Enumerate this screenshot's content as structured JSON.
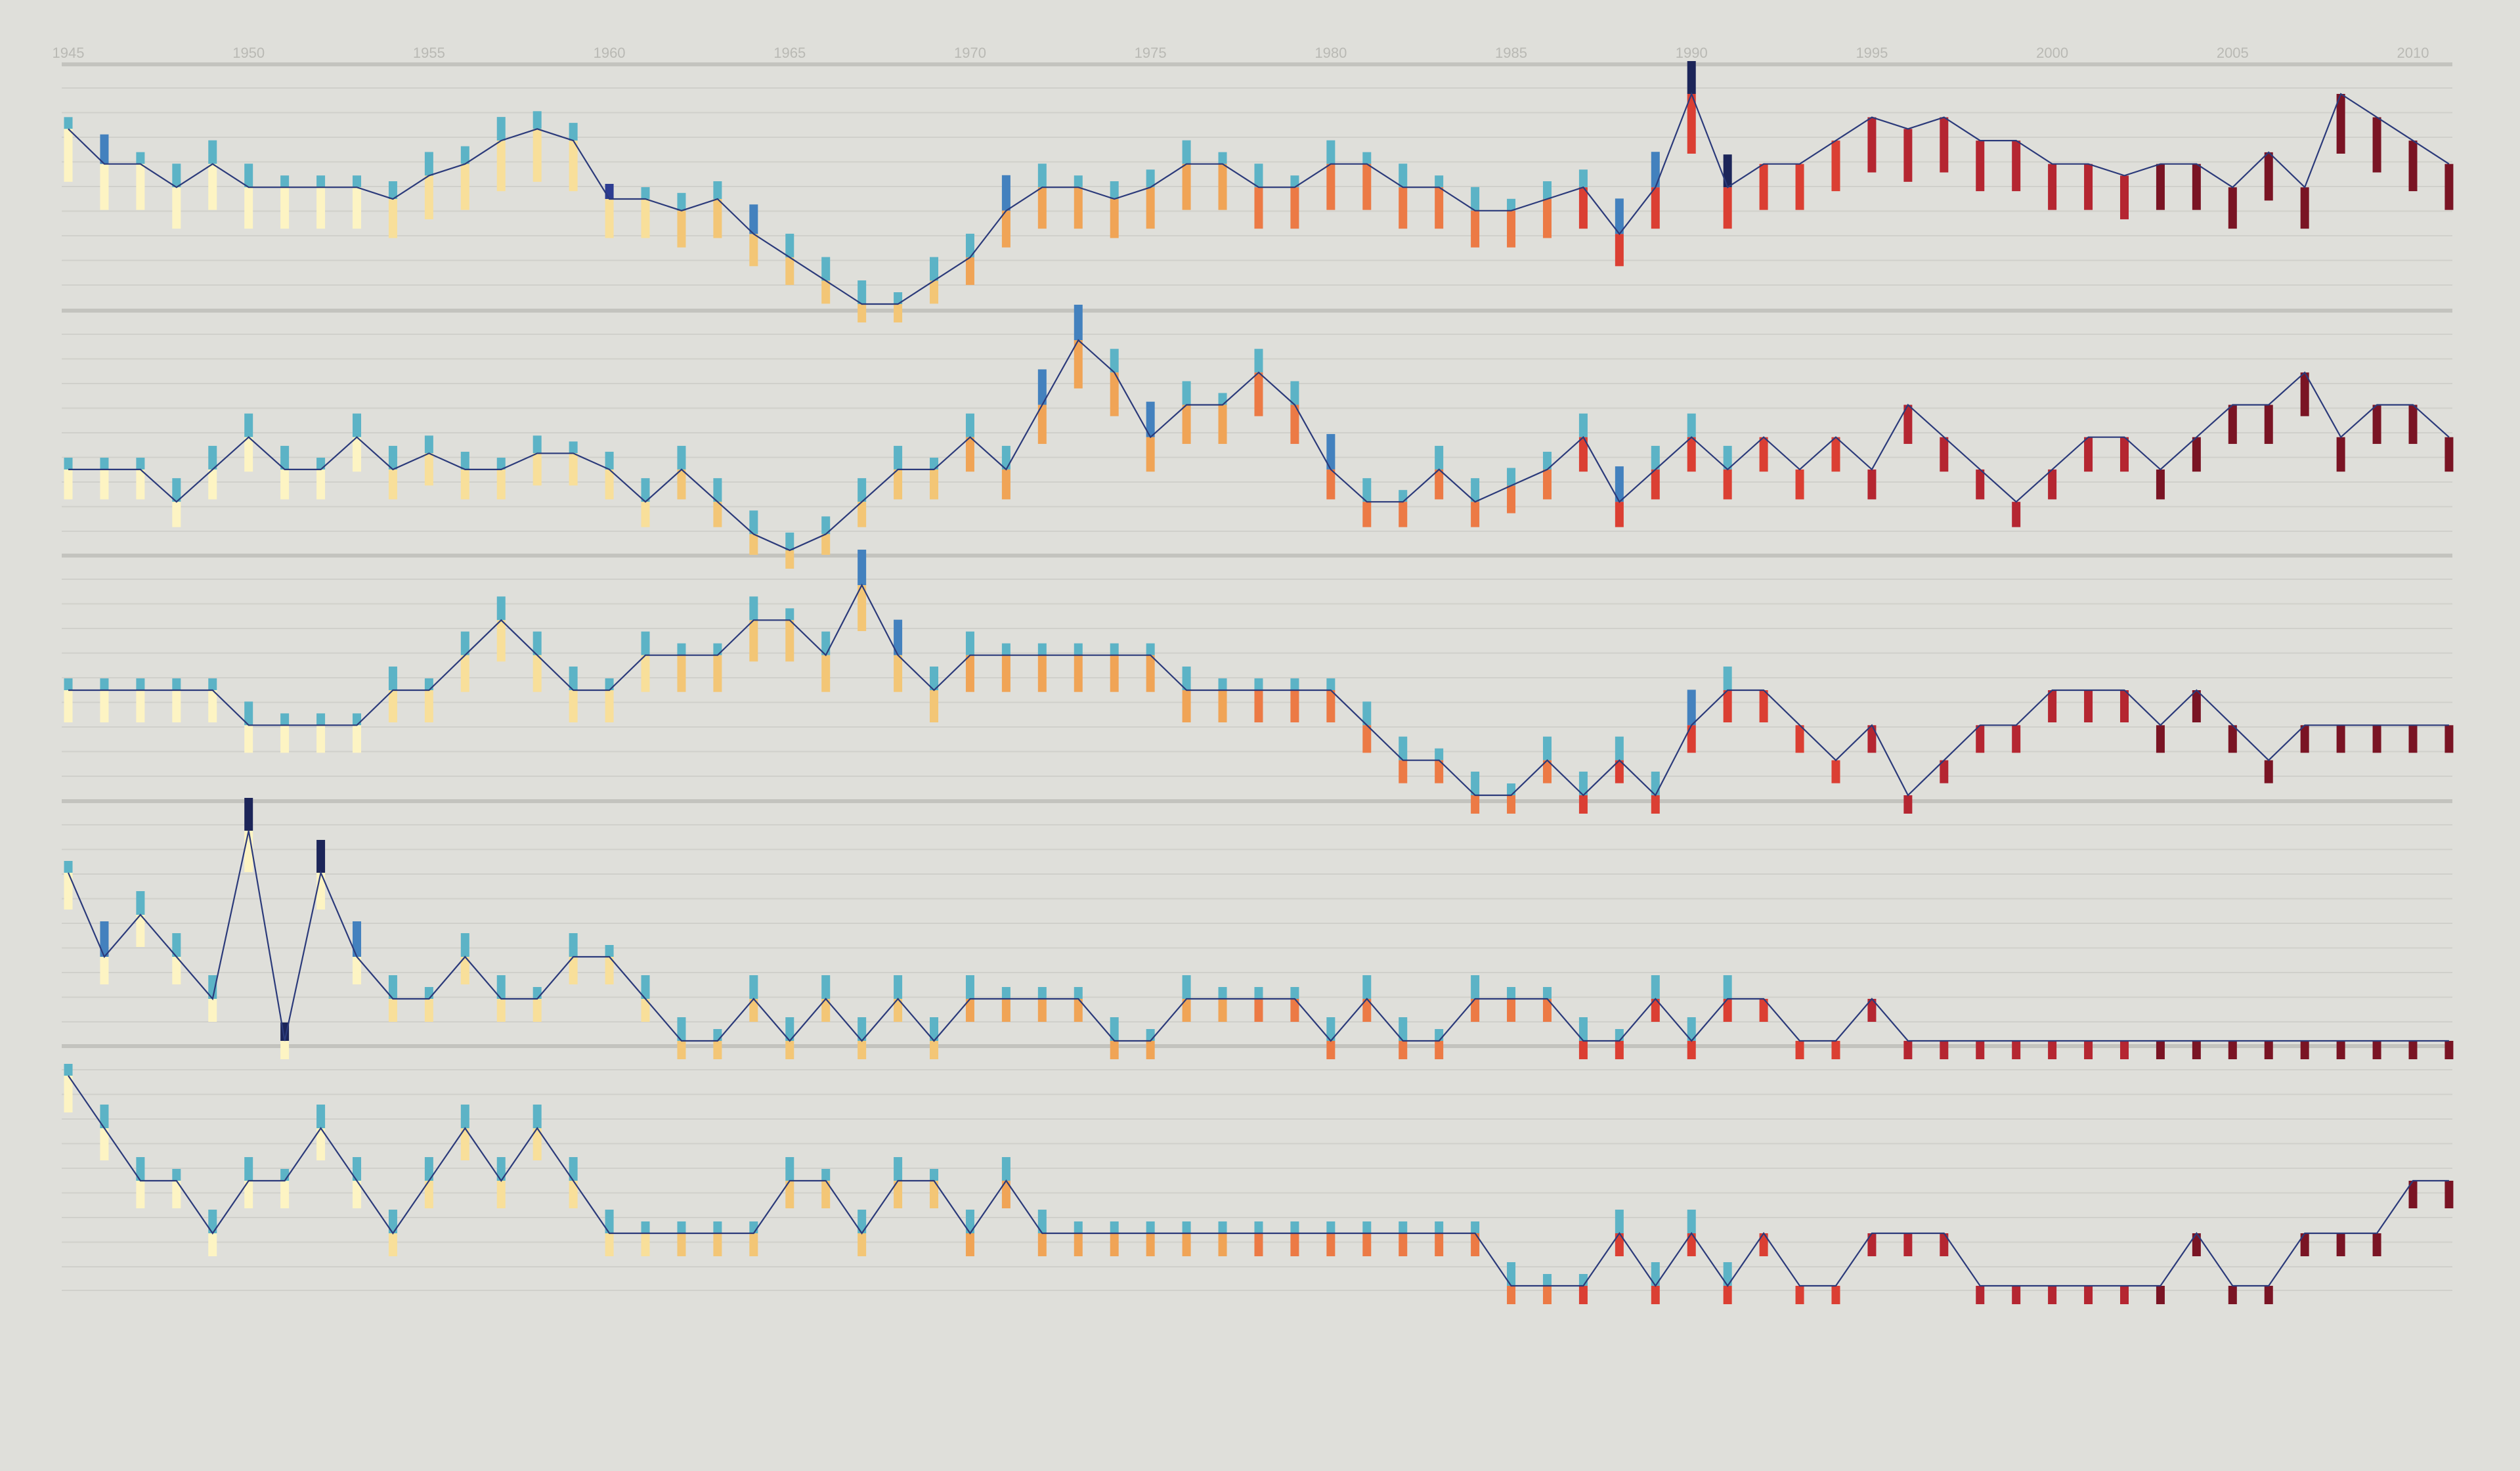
{
  "chart_data": {
    "type": "bar",
    "title": "",
    "xlabel": "",
    "ylabel": "",
    "x_ticks": [
      "1945",
      "1950",
      "1955",
      "1960",
      "1965",
      "1970",
      "1975",
      "1980",
      "1985",
      "1990",
      "1995",
      "2000",
      "2005",
      "2010"
    ],
    "x_range": [
      1945,
      2011
    ],
    "grid": true,
    "colors": {
      "background": "#dfdfda",
      "grid": "#d0d0cb",
      "panel_separator": "#c3c3be",
      "tick_label": "#b9b9b4",
      "line_dark": "#2b3a7a",
      "line_light": "#5aaec4",
      "above_teal": "#5cb3c6",
      "above_blue": "#4381be",
      "above_royal": "#2c3c92",
      "above_navy": "#1c2559",
      "below_pale": "#fdf4c3",
      "below_yellow": "#f8df9a",
      "below_gold": "#f3c676",
      "below_orange": "#f0a456",
      "below_deep_orange": "#ec7a45",
      "below_red": "#db3f33",
      "below_dark_red": "#b52631",
      "below_maroon": "#7a1424"
    },
    "panels": [
      {
        "series": [
          {
            "name": "",
            "start": 1945,
            "values": [
              17.5,
              16,
              16,
              15,
              16,
              15,
              15,
              15,
              15,
              14.5,
              15.5,
              16,
              17,
              17.5,
              17,
              14.5,
              14.5,
              14,
              14.5,
              13,
              12,
              11,
              10,
              10,
              11,
              12,
              14,
              15,
              15,
              14.5,
              15,
              16,
              16,
              15,
              15,
              16,
              16,
              15,
              15,
              14,
              14,
              14.5,
              15,
              13,
              15,
              19,
              15,
              16,
              16,
              17,
              18,
              17.5,
              18,
              17,
              17,
              16,
              16,
              15.5,
              16,
              16,
              15,
              16.5,
              15,
              19,
              18,
              17,
              16
            ]
          }
        ]
      },
      {
        "series": [
          {
            "name": "",
            "start": 1945,
            "values": [
              12,
              12,
              12,
              11,
              12,
              13,
              12,
              12,
              13,
              12,
              12.5,
              12,
              12,
              12.5,
              12.5,
              12,
              11,
              12,
              11,
              10,
              9.5,
              10,
              11,
              12,
              12,
              13,
              12,
              14,
              16,
              15,
              13,
              14,
              14,
              15,
              14,
              12,
              11,
              11,
              12,
              11,
              11.5,
              12,
              13,
              11,
              12,
              13,
              12,
              13,
              12,
              13,
              12,
              14,
              13,
              12,
              11,
              12,
              13,
              13,
              12,
              13,
              14,
              14,
              15,
              13,
              14,
              14,
              13
            ]
          }
        ]
      },
      {
        "series": [
          {
            "name": "",
            "start": 1945,
            "values": [
              9,
              9,
              9,
              9,
              9,
              8,
              8,
              8,
              8,
              9,
              9,
              10,
              11,
              10,
              9,
              9,
              10,
              10,
              10,
              11,
              11,
              10,
              12,
              10,
              9,
              10,
              10,
              10,
              10,
              10,
              10,
              9,
              9,
              9,
              9,
              9,
              8,
              7,
              7,
              6,
              6,
              7,
              6,
              7,
              6,
              8,
              9,
              9,
              8,
              7,
              8,
              6,
              7,
              8,
              8,
              9,
              9,
              9,
              8,
              9,
              8,
              7,
              8,
              8,
              8,
              8,
              8
            ]
          }
        ]
      },
      {
        "series": [
          {
            "name": "",
            "start": 1945,
            "values": [
              16,
              14,
              15,
              14,
              13,
              17,
              12,
              16,
              14,
              13,
              13,
              14,
              13,
              13,
              14,
              14,
              13,
              12,
              12,
              13,
              12,
              13,
              12,
              13,
              12,
              13,
              13,
              13,
              13,
              12,
              12,
              13,
              13,
              13,
              13,
              12,
              13,
              12,
              12,
              13,
              13,
              13,
              12,
              12,
              13,
              12,
              13,
              13,
              12,
              12,
              13,
              12,
              12,
              12,
              12,
              12,
              12,
              12,
              12,
              12,
              12,
              12,
              12,
              12,
              12,
              12,
              12
            ]
          }
        ]
      },
      {
        "series": [
          {
            "name": "",
            "start": 1945,
            "values": [
              18,
              17,
              16,
              16,
              15,
              16,
              16,
              17,
              16,
              15,
              16,
              17,
              16,
              17,
              16,
              15,
              15,
              15,
              15,
              15,
              16,
              16,
              15,
              16,
              16,
              15,
              16,
              15,
              15,
              15,
              15,
              15,
              15,
              15,
              15,
              15,
              15,
              15,
              15,
              15,
              14,
              14,
              14,
              15,
              14,
              15,
              14,
              15,
              14,
              14,
              15,
              15,
              15,
              14,
              14,
              14,
              14,
              14,
              14,
              15,
              14,
              14,
              15,
              15,
              15,
              16,
              16
            ]
          }
        ]
      }
    ]
  }
}
